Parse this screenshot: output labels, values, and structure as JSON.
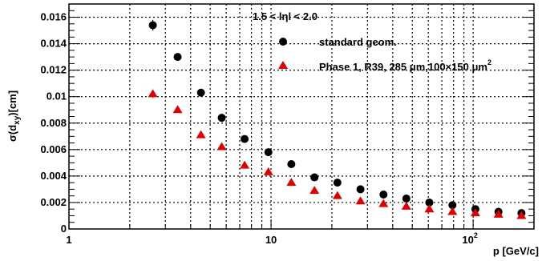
{
  "chart_data": {
    "type": "scatter",
    "x_scale": "log",
    "xlim": [
      1,
      200
    ],
    "ylim": [
      0,
      0.017
    ],
    "grid": true,
    "grid_style": "dotted",
    "xlabel": "p [GeV/c]",
    "ylabel": "σ(d_xy)[cm]",
    "annotation": "1.5 < lηl < 2.0",
    "x_ticks": [
      {
        "value": 1,
        "label": "1"
      },
      {
        "value": 10,
        "label": "10"
      }
    ],
    "x_tick_102": {
      "value": 100,
      "base": "10",
      "exp": "2"
    },
    "y_ticks": [
      {
        "value": 0,
        "label": "0"
      },
      {
        "value": 0.002,
        "label": "0.002"
      },
      {
        "value": 0.004,
        "label": "0.004"
      },
      {
        "value": 0.006,
        "label": "0.006"
      },
      {
        "value": 0.008,
        "label": "0.008"
      },
      {
        "value": 0.01,
        "label": "0.01"
      },
      {
        "value": 0.012,
        "label": "0.012"
      },
      {
        "value": 0.014,
        "label": "0.014"
      },
      {
        "value": 0.016,
        "label": "0.016"
      }
    ],
    "legend_position": "top-right",
    "series": [
      {
        "name": "standard geom.",
        "marker": "circle",
        "color": "#000000",
        "x": [
          2.6,
          3.45,
          4.5,
          5.7,
          7.4,
          9.7,
          12.6,
          16.4,
          21.3,
          27.7,
          36,
          46.7,
          60.7,
          79,
          102.6,
          133.4,
          173.4
        ],
        "y": [
          0.0154,
          0.013,
          0.0103,
          0.0084,
          0.0068,
          0.0058,
          0.0049,
          0.0039,
          0.0035,
          0.003,
          0.0026,
          0.0023,
          0.002,
          0.0018,
          0.0015,
          0.0013,
          0.0012
        ],
        "yerr": [
          0.0004,
          0.0002,
          0.0002,
          0.0001,
          0.0001,
          0.0001,
          0.0001,
          0.0001,
          0.0001,
          0.0001,
          0.0001,
          0.0001,
          0.0001,
          0.0001,
          0.0001,
          0.0001,
          0.0001
        ]
      },
      {
        "name_parts": {
          "main": "Phase 1, R39, 285 μm,100×150 μm",
          "sup": "2"
        },
        "marker": "triangle",
        "color": "#e00000",
        "x": [
          2.6,
          3.45,
          4.5,
          5.7,
          7.4,
          9.7,
          12.6,
          16.4,
          21.3,
          27.7,
          36,
          46.7,
          60.7,
          79,
          102.6,
          133.4,
          173.4
        ],
        "y": [
          0.0102,
          0.009,
          0.0071,
          0.0062,
          0.0048,
          0.0043,
          0.0035,
          0.0029,
          0.0025,
          0.0021,
          0.0019,
          0.0017,
          0.0015,
          0.0013,
          0.0012,
          0.0011,
          0.001
        ],
        "yerr": [
          0.0003,
          0.0002,
          0.0001,
          0.0001,
          0.0001,
          0.0001,
          0.0001,
          0.0001,
          0.0001,
          0.0001,
          0.0001,
          0.0001,
          0.0001,
          0.0001,
          0.0001,
          0.0001,
          0.0001
        ]
      }
    ]
  }
}
